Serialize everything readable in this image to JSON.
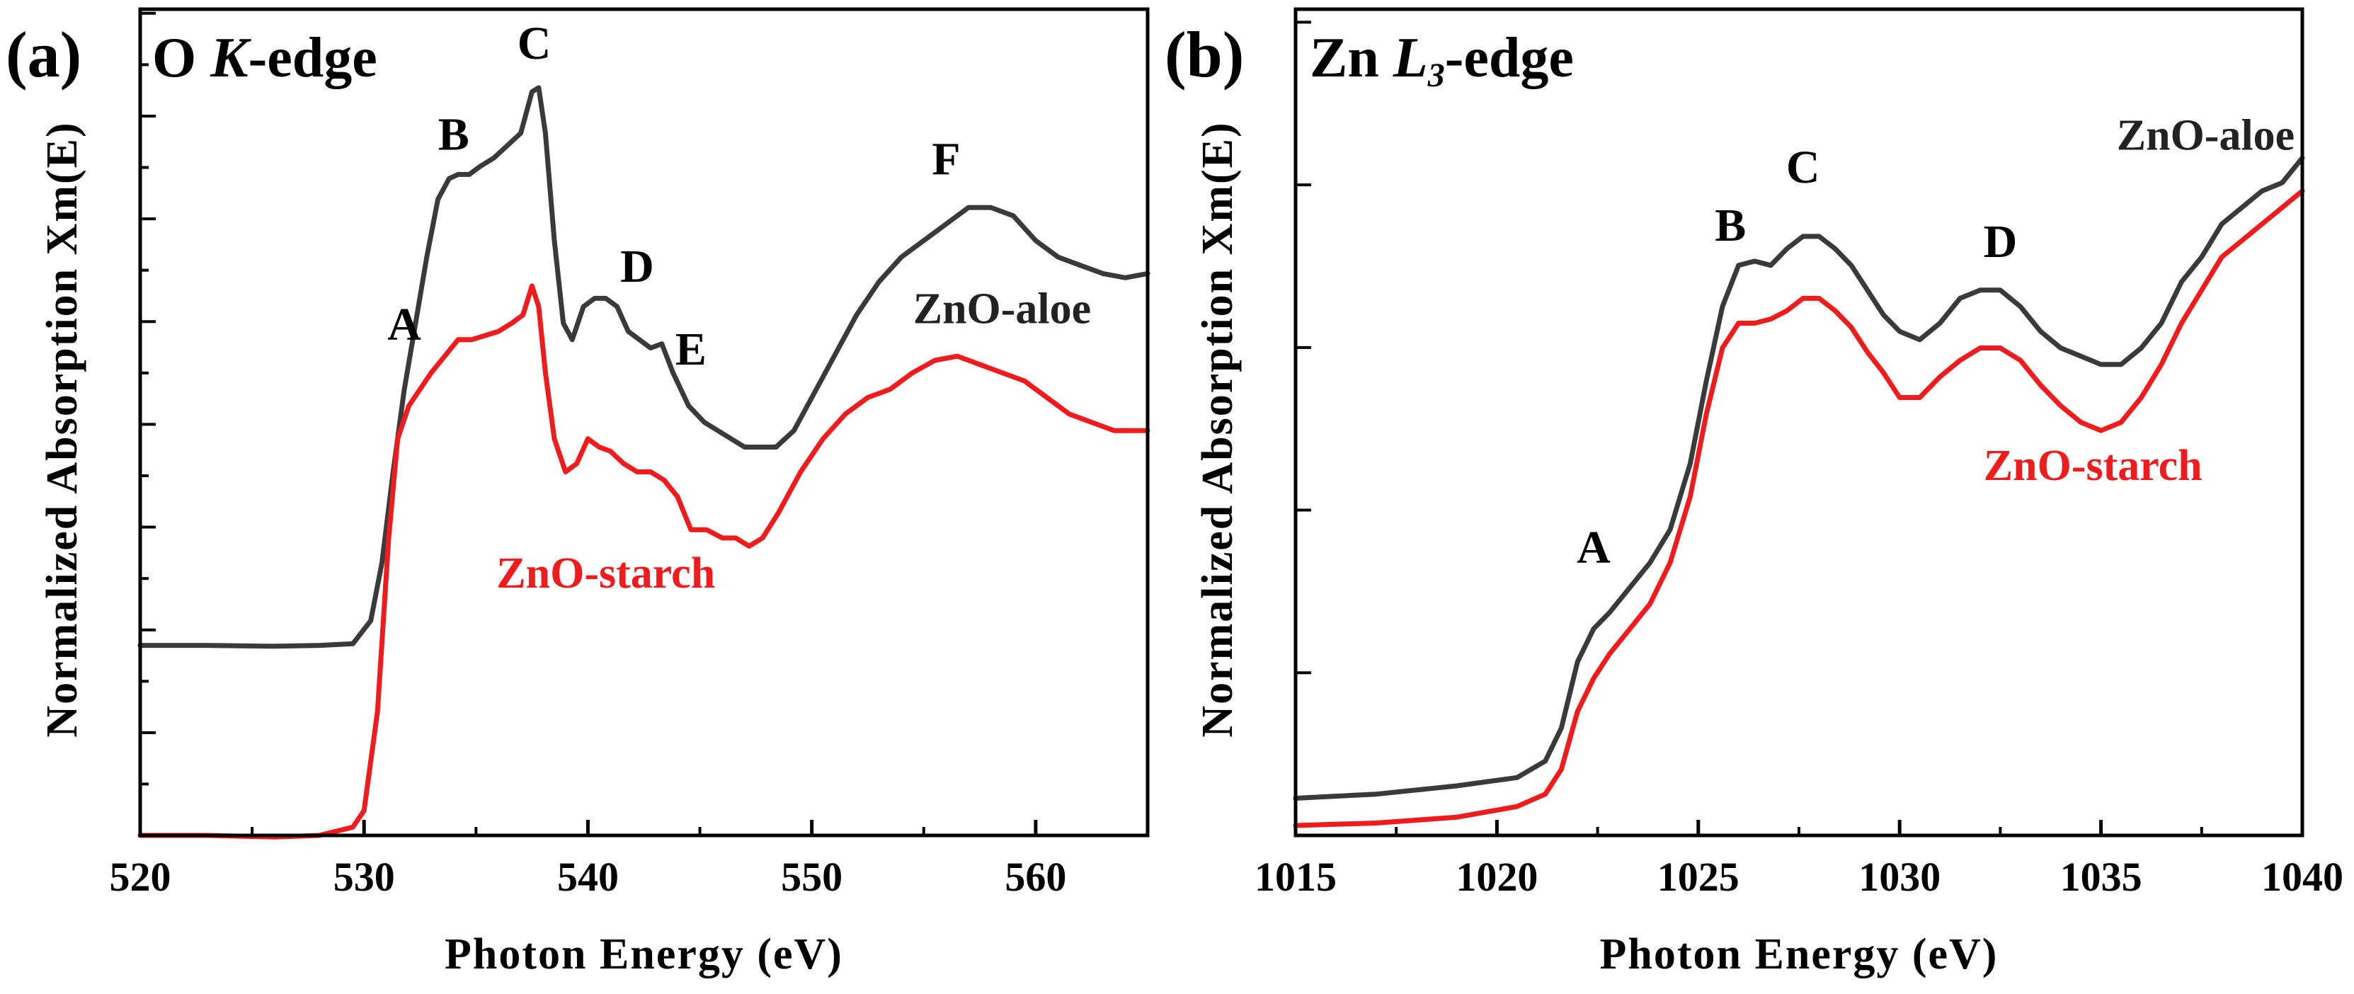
{
  "chart_data": [
    {
      "type": "line",
      "panel_label": "(a)",
      "title": "O K-edge",
      "title_parts": {
        "main": "O ",
        "italic": "K",
        "suffix": "-edge"
      },
      "xlabel": "Photon Energy (eV)",
      "ylabel": "Normalized Absorption Xm(E)",
      "xlim": [
        520,
        565
      ],
      "ylim": [
        0,
        1
      ],
      "xticks": [
        520,
        530,
        540,
        550,
        560
      ],
      "y_tick_labels": false,
      "series": [
        {
          "name": "ZnO-aloe",
          "color": "#3a3a3a",
          "x": [
            520,
            523,
            526,
            528,
            529.5,
            530.3,
            530.8,
            531.3,
            531.8,
            532.3,
            532.8,
            533.3,
            533.8,
            534.2,
            534.7,
            535.2,
            535.8,
            536.4,
            537,
            537.5,
            537.8,
            538.1,
            538.5,
            538.9,
            539.3,
            539.8,
            540.3,
            540.8,
            541.3,
            541.8,
            542.3,
            542.8,
            543.3,
            543.8,
            544.5,
            545.2,
            545.8,
            546.4,
            547,
            547.6,
            548.4,
            549.2,
            550,
            551,
            552,
            553,
            554,
            555,
            556,
            557,
            558,
            559,
            560,
            561,
            562,
            563,
            564,
            565
          ],
          "y": [
            0.23,
            0.23,
            0.229,
            0.23,
            0.232,
            0.26,
            0.33,
            0.44,
            0.54,
            0.62,
            0.7,
            0.77,
            0.795,
            0.8,
            0.8,
            0.81,
            0.82,
            0.835,
            0.85,
            0.9,
            0.905,
            0.85,
            0.72,
            0.62,
            0.6,
            0.64,
            0.65,
            0.65,
            0.64,
            0.61,
            0.6,
            0.59,
            0.595,
            0.56,
            0.52,
            0.5,
            0.49,
            0.48,
            0.47,
            0.47,
            0.47,
            0.49,
            0.53,
            0.58,
            0.63,
            0.67,
            0.7,
            0.72,
            0.74,
            0.76,
            0.76,
            0.75,
            0.72,
            0.7,
            0.69,
            0.68,
            0.675,
            0.68
          ]
        },
        {
          "name": "ZnO-starch",
          "color": "#ee1c1c",
          "x": [
            520,
            523,
            526,
            528,
            529.5,
            530,
            530.6,
            531.1,
            531.5,
            532,
            532.5,
            533,
            533.6,
            534.2,
            534.8,
            535.4,
            536,
            536.6,
            537.1,
            537.5,
            537.8,
            538.1,
            538.5,
            539,
            539.5,
            540,
            540.5,
            541,
            541.6,
            542.2,
            542.8,
            543.4,
            544,
            544.6,
            545.3,
            546,
            546.6,
            547.2,
            547.8,
            548.5,
            549.5,
            550.5,
            551.5,
            552.5,
            553.5,
            554.5,
            555.5,
            556.5,
            557.5,
            558.5,
            559.5,
            560.5,
            561.5,
            562.5,
            563.5,
            565
          ],
          "y": [
            0.0,
            0.0,
            -0.002,
            0.0,
            0.01,
            0.03,
            0.15,
            0.36,
            0.48,
            0.52,
            0.54,
            0.56,
            0.58,
            0.6,
            0.6,
            0.605,
            0.61,
            0.62,
            0.63,
            0.665,
            0.64,
            0.56,
            0.48,
            0.44,
            0.45,
            0.48,
            0.47,
            0.465,
            0.45,
            0.44,
            0.44,
            0.43,
            0.41,
            0.37,
            0.37,
            0.36,
            0.36,
            0.35,
            0.36,
            0.39,
            0.44,
            0.48,
            0.51,
            0.53,
            0.54,
            0.56,
            0.575,
            0.58,
            0.57,
            0.56,
            0.55,
            0.53,
            0.51,
            0.5,
            0.49,
            0.49
          ]
        }
      ],
      "annotations": [
        {
          "text": "A",
          "x": 531.8,
          "y": 0.6
        },
        {
          "text": "B",
          "x": 534.0,
          "y": 0.83
        },
        {
          "text": "C",
          "x": 537.6,
          "y": 0.94
        },
        {
          "text": "D",
          "x": 542.2,
          "y": 0.67
        },
        {
          "text": "E",
          "x": 544.6,
          "y": 0.57
        },
        {
          "text": "F",
          "x": 556.0,
          "y": 0.8
        }
      ],
      "series_labels": [
        {
          "text": "ZnO-aloe",
          "x": 558.5,
          "y": 0.62,
          "color": "#222222"
        },
        {
          "text": "ZnO-starch",
          "x": 540.8,
          "y": 0.3,
          "color": "#ee1c1c"
        }
      ]
    },
    {
      "type": "line",
      "panel_label": "(b)",
      "title": "Zn L3-edge",
      "title_parts": {
        "main": "Zn ",
        "italic": "L",
        "sub": "3",
        "suffix": "-edge"
      },
      "xlabel": "Photon Energy (eV)",
      "ylabel": "Normalized Absorption Xm(E)",
      "xlim": [
        1015,
        1040
      ],
      "ylim": [
        0,
        1
      ],
      "xticks": [
        1015,
        1020,
        1025,
        1030,
        1035,
        1040
      ],
      "y_tick_labels": false,
      "series": [
        {
          "name": "ZnO-aloe",
          "color": "#3a3a3a",
          "x": [
            1015,
            1017,
            1019,
            1020.5,
            1021.2,
            1021.6,
            1022,
            1022.4,
            1022.8,
            1023.3,
            1023.8,
            1024.3,
            1024.8,
            1025.2,
            1025.6,
            1026,
            1026.4,
            1026.8,
            1027.2,
            1027.6,
            1028,
            1028.4,
            1028.8,
            1029.2,
            1029.6,
            1030,
            1030.5,
            1031,
            1031.5,
            1032,
            1032.5,
            1033,
            1033.5,
            1034,
            1034.5,
            1035,
            1035.5,
            1036,
            1036.5,
            1037,
            1037.5,
            1038,
            1038.5,
            1039,
            1039.5,
            1040
          ],
          "y": [
            0.045,
            0.05,
            0.06,
            0.07,
            0.09,
            0.13,
            0.21,
            0.25,
            0.27,
            0.3,
            0.33,
            0.37,
            0.45,
            0.55,
            0.64,
            0.69,
            0.695,
            0.69,
            0.71,
            0.725,
            0.725,
            0.71,
            0.69,
            0.66,
            0.63,
            0.61,
            0.6,
            0.62,
            0.65,
            0.66,
            0.66,
            0.64,
            0.61,
            0.59,
            0.58,
            0.57,
            0.57,
            0.59,
            0.62,
            0.67,
            0.7,
            0.74,
            0.76,
            0.78,
            0.79,
            0.82
          ]
        },
        {
          "name": "ZnO-starch",
          "color": "#ee1c1c",
          "x": [
            1015,
            1017,
            1019,
            1020.5,
            1021.2,
            1021.6,
            1022,
            1022.4,
            1022.8,
            1023.3,
            1023.8,
            1024.3,
            1024.8,
            1025.2,
            1025.6,
            1026,
            1026.4,
            1026.8,
            1027.2,
            1027.6,
            1028,
            1028.4,
            1028.8,
            1029.2,
            1029.6,
            1030,
            1030.5,
            1031,
            1031.5,
            1032,
            1032.5,
            1033,
            1033.5,
            1034,
            1034.5,
            1035,
            1035.5,
            1036,
            1036.5,
            1037,
            1037.5,
            1038,
            1038.5,
            1039,
            1039.5,
            1040
          ],
          "y": [
            0.012,
            0.015,
            0.022,
            0.035,
            0.05,
            0.08,
            0.15,
            0.19,
            0.22,
            0.25,
            0.28,
            0.33,
            0.41,
            0.51,
            0.59,
            0.62,
            0.62,
            0.625,
            0.635,
            0.65,
            0.65,
            0.635,
            0.615,
            0.585,
            0.56,
            0.53,
            0.53,
            0.555,
            0.575,
            0.59,
            0.59,
            0.575,
            0.545,
            0.52,
            0.5,
            0.49,
            0.5,
            0.53,
            0.57,
            0.62,
            0.66,
            0.7,
            0.72,
            0.74,
            0.76,
            0.78
          ]
        }
      ],
      "annotations": [
        {
          "text": "A",
          "x": 1022.4,
          "y": 0.33
        },
        {
          "text": "B",
          "x": 1025.8,
          "y": 0.72
        },
        {
          "text": "C",
          "x": 1027.6,
          "y": 0.79
        },
        {
          "text": "D",
          "x": 1032.5,
          "y": 0.7
        }
      ],
      "series_labels": [
        {
          "text": "ZnO-aloe",
          "x": 1037.6,
          "y": 0.83,
          "color": "#222222"
        },
        {
          "text": "ZnO-starch",
          "x": 1034.8,
          "y": 0.43,
          "color": "#ee1c1c"
        }
      ]
    }
  ]
}
